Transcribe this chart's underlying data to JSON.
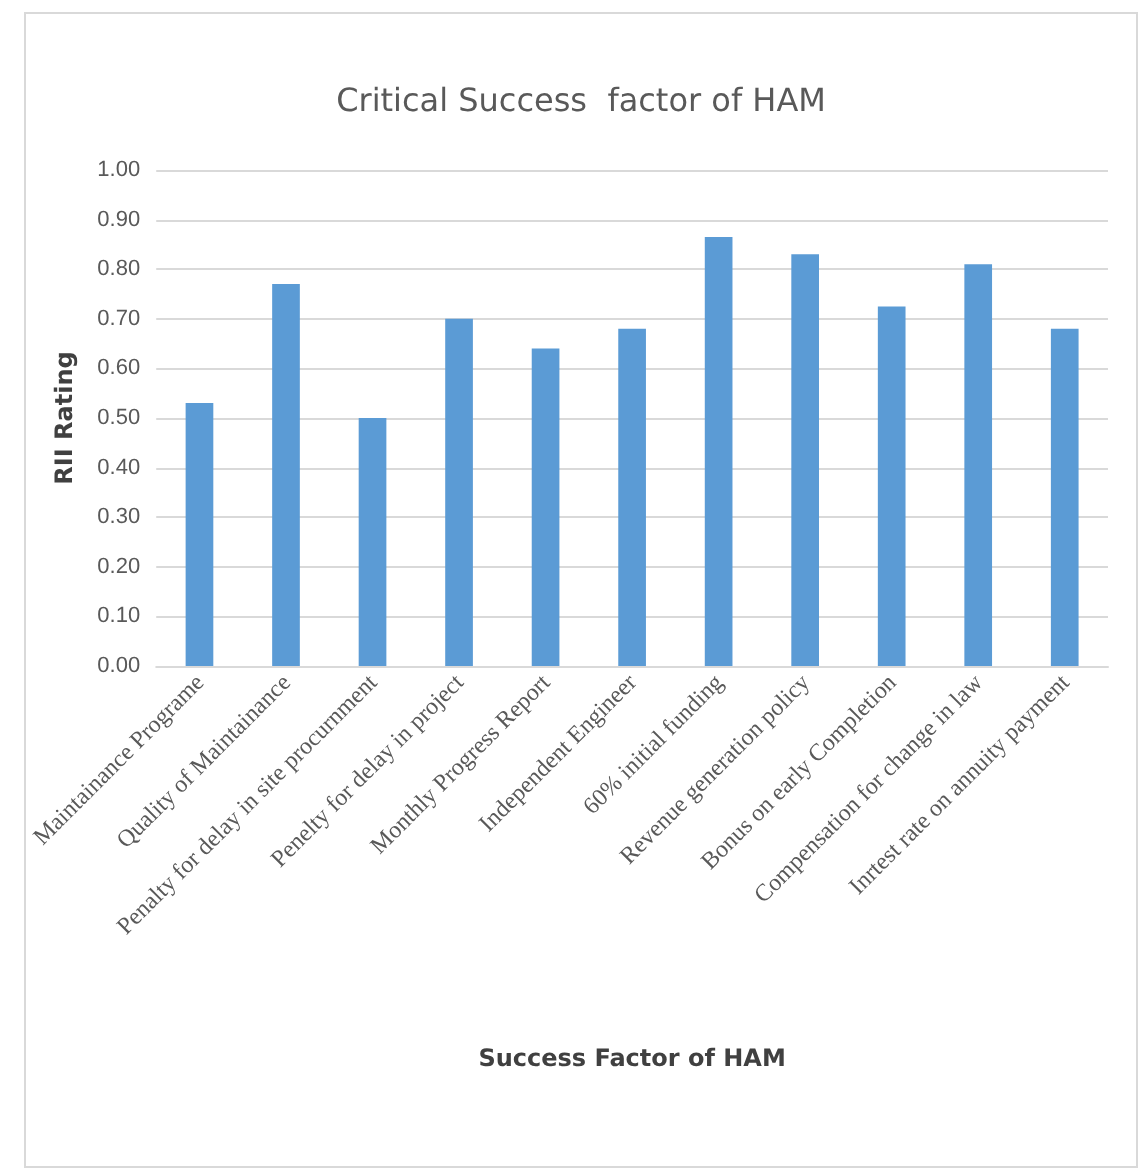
{
  "chart_data": {
    "type": "bar",
    "title": "Critical Success  factor of HAM",
    "xlabel": "Success Factor of HAM",
    "ylabel": "RII Rating",
    "categories": [
      "Maintainance Programe",
      "Quality of Maintainance",
      "Penalty for delay in site procurnment",
      "Penelty for delay in project",
      "Monthly Progress Report",
      "Independent Engineer",
      "60% initial funding",
      "Revenue generation policy",
      "Bonus on early Completion",
      "Compensation for change in law",
      "Inrtest rate on annuity payment"
    ],
    "values": [
      0.53,
      0.77,
      0.5,
      0.7,
      0.64,
      0.68,
      0.865,
      0.83,
      0.725,
      0.81,
      0.68
    ],
    "color": "#5b9bd5",
    "ylim": [
      0,
      1
    ],
    "yticks": [
      {
        "value": 0,
        "label": "0.00"
      },
      {
        "value": 0.1,
        "label": "0.10"
      },
      {
        "value": 0.2,
        "label": "0.20"
      },
      {
        "value": 0.3,
        "label": "0.30"
      },
      {
        "value": 0.4,
        "label": "0.40"
      },
      {
        "value": 0.5,
        "label": "0.50"
      },
      {
        "value": 0.6,
        "label": "0.60"
      },
      {
        "value": 0.7,
        "label": "0.70"
      },
      {
        "value": 0.8,
        "label": "0.80"
      },
      {
        "value": 0.9,
        "label": "0.90"
      },
      {
        "value": 1,
        "label": "1.00"
      }
    ],
    "grid": "y"
  }
}
